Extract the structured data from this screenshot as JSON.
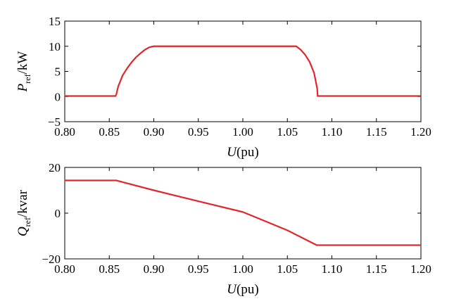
{
  "chart_data": [
    {
      "type": "line",
      "ylabel": {
        "var": "P",
        "sub": "ref",
        "unit": "/kW"
      },
      "xlabel": {
        "var": "U",
        "unit": "(pu)"
      },
      "xlim": [
        0.8,
        1.2
      ],
      "ylim": [
        -5,
        15
      ],
      "xticks": [
        "0.80",
        "0.85",
        "0.90",
        "0.95",
        "1.00",
        "1.05",
        "1.10",
        "1.15",
        "1.20"
      ],
      "yticks": [
        "−5",
        "0",
        "5",
        "10",
        "15"
      ],
      "grid": false,
      "color": "#e3262a",
      "series": [
        {
          "x": [
            0.8,
            0.857,
            0.858,
            0.86,
            0.865,
            0.87,
            0.875,
            0.88,
            0.885,
            0.89,
            0.895,
            0.9,
            1.06,
            1.065,
            1.07,
            1.075,
            1.08,
            1.0835,
            1.084,
            1.2
          ],
          "y": [
            0.1,
            0.1,
            0.5,
            2.0,
            4.2,
            5.6,
            6.8,
            7.8,
            8.6,
            9.3,
            9.8,
            10.0,
            10.0,
            9.3,
            8.3,
            6.9,
            4.7,
            1.6,
            0.1,
            0.1
          ]
        }
      ]
    },
    {
      "type": "line",
      "ylabel": {
        "var": "Q",
        "sub": "ref",
        "unit": "/kvar"
      },
      "xlabel": {
        "var": "U",
        "unit": "(pu)"
      },
      "xlim": [
        0.8,
        1.2
      ],
      "ylim": [
        -20,
        20
      ],
      "xticks": [
        "0.80",
        "0.85",
        "0.90",
        "0.95",
        "1.00",
        "1.05",
        "1.10",
        "1.15",
        "1.20"
      ],
      "yticks": [
        "−20",
        "0",
        "20"
      ],
      "grid": false,
      "color": "#e3262a",
      "series": [
        {
          "x": [
            0.8,
            0.858,
            0.9,
            0.95,
            1.0,
            1.05,
            1.083,
            1.2
          ],
          "y": [
            14.3,
            14.3,
            10.0,
            5.2,
            0.5,
            -7.5,
            -14.0,
            -14.0
          ]
        }
      ]
    }
  ]
}
